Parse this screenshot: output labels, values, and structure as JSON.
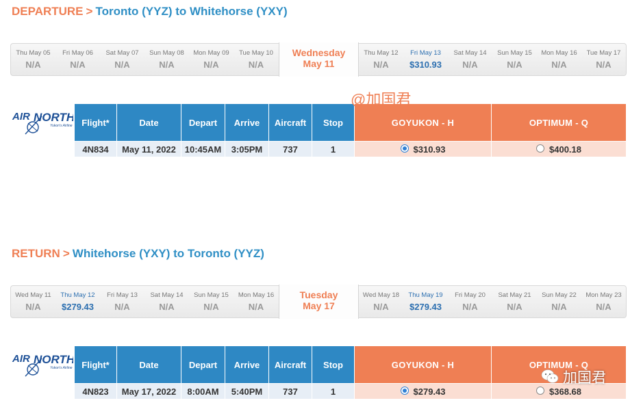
{
  "departure": {
    "keyword": "DEPARTURE",
    "separator": ">",
    "route": "Toronto (YYZ) to Whitehorse (YXY)",
    "dates": [
      {
        "label": "Thu May 05",
        "price": "N/A"
      },
      {
        "label": "Fri May 06",
        "price": "N/A"
      },
      {
        "label": "Sat May 07",
        "price": "N/A"
      },
      {
        "label": "Sun May 08",
        "price": "N/A"
      },
      {
        "label": "Mon May 09",
        "price": "N/A"
      },
      {
        "label": "Tue May 10",
        "price": "N/A"
      },
      {
        "label": "Wednesday",
        "price": "May 11"
      },
      {
        "label": "Thu May 12",
        "price": "N/A"
      },
      {
        "label": "Fri May 13",
        "price": "$310.93"
      },
      {
        "label": "Sat May 14",
        "price": "N/A"
      },
      {
        "label": "Sun May 15",
        "price": "N/A"
      },
      {
        "label": "Mon May 16",
        "price": "N/A"
      },
      {
        "label": "Tue May 17",
        "price": "N/A"
      }
    ],
    "headers": {
      "flight": "Flight*",
      "date": "Date",
      "depart": "Depart",
      "arrive": "Arrive",
      "aircraft": "Aircraft",
      "stop": "Stop",
      "fare1": "GOYUKON - H",
      "fare2": "OPTIMUM - Q"
    },
    "row": {
      "flight": "4N834",
      "date": "May 11, 2022",
      "depart": "10:45AM",
      "arrive": "3:05PM",
      "aircraft": "737",
      "stop": "1",
      "fare1": "$310.93",
      "fare2": "$400.18"
    }
  },
  "return": {
    "keyword": "RETURN",
    "separator": ">",
    "route": "Whitehorse (YXY) to Toronto (YYZ)",
    "dates": [
      {
        "label": "Wed May 11",
        "price": "N/A"
      },
      {
        "label": "Thu May 12",
        "price": "$279.43"
      },
      {
        "label": "Fri May 13",
        "price": "N/A"
      },
      {
        "label": "Sat May 14",
        "price": "N/A"
      },
      {
        "label": "Sun May 15",
        "price": "N/A"
      },
      {
        "label": "Mon May 16",
        "price": "N/A"
      },
      {
        "label": "Tuesday",
        "price": "May 17"
      },
      {
        "label": "Wed May 18",
        "price": "N/A"
      },
      {
        "label": "Thu May 19",
        "price": "$279.43"
      },
      {
        "label": "Fri May 20",
        "price": "N/A"
      },
      {
        "label": "Sat May 21",
        "price": "N/A"
      },
      {
        "label": "Sun May 22",
        "price": "N/A"
      },
      {
        "label": "Mon May 23",
        "price": "N/A"
      }
    ],
    "headers": {
      "flight": "Flight*",
      "date": "Date",
      "depart": "Depart",
      "arrive": "Arrive",
      "aircraft": "Aircraft",
      "stop": "Stop",
      "fare1": "GOYUKON - H",
      "fare2": "OPTIMUM - Q"
    },
    "row": {
      "flight": "4N823",
      "date": "May 17, 2022",
      "depart": "8:00AM",
      "arrive": "5:40PM",
      "aircraft": "737",
      "stop": "1",
      "fare1": "$279.43",
      "fare2": "$368.68"
    }
  },
  "logo": {
    "name": "AIRNORTH",
    "tagline": "Yukon's Airline"
  },
  "watermarks": {
    "top": "@加国君",
    "bottom": "加国君"
  },
  "colors": {
    "orange": "#ef7f54",
    "blue": "#2e88c4",
    "price_blue": "#2c6fb0"
  }
}
